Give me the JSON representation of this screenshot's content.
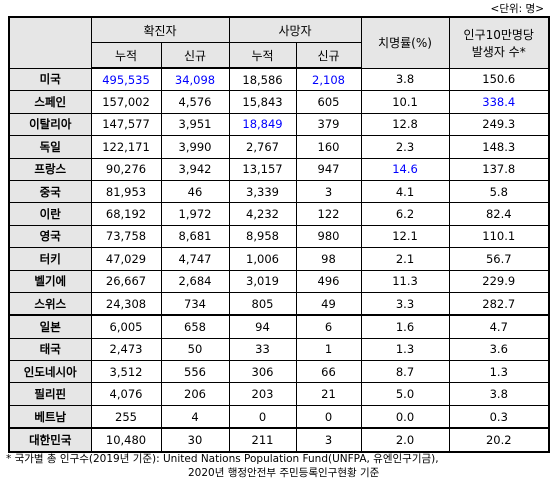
{
  "unit_note": "<단위: 명>",
  "table": {
    "headers": {
      "confirmed": "확진자",
      "deaths": "사망자",
      "cumulative": "누적",
      "new": "신규",
      "fatality": "치명률(%)",
      "per_100k": [
        "인구10만명당",
        "발생자 수*"
      ]
    },
    "highlight_color": "#0000ff",
    "highlighted": [
      [
        0,
        1
      ],
      [
        0,
        2
      ],
      [
        0,
        4
      ],
      [
        1,
        6
      ],
      [
        2,
        3
      ],
      [
        4,
        5
      ]
    ],
    "group_breaks": [
      11,
      16
    ],
    "rows": [
      [
        "미국",
        "495,535",
        "34,098",
        "18,586",
        "2,108",
        "3.8",
        "150.6"
      ],
      [
        "스페인",
        "157,002",
        "4,576",
        "15,843",
        "605",
        "10.1",
        "338.4"
      ],
      [
        "이탈리아",
        "147,577",
        "3,951",
        "18,849",
        "379",
        "12.8",
        "249.3"
      ],
      [
        "독일",
        "122,171",
        "3,990",
        "2,767",
        "160",
        "2.3",
        "148.3"
      ],
      [
        "프랑스",
        "90,276",
        "3,942",
        "13,157",
        "947",
        "14.6",
        "137.8"
      ],
      [
        "중국",
        "81,953",
        "46",
        "3,339",
        "3",
        "4.1",
        "5.8"
      ],
      [
        "이란",
        "68,192",
        "1,972",
        "4,232",
        "122",
        "6.2",
        "82.4"
      ],
      [
        "영국",
        "73,758",
        "8,681",
        "8,958",
        "980",
        "12.1",
        "110.1"
      ],
      [
        "터키",
        "47,029",
        "4,747",
        "1,006",
        "98",
        "2.1",
        "56.7"
      ],
      [
        "벨기에",
        "26,667",
        "2,684",
        "3,019",
        "496",
        "11.3",
        "229.9"
      ],
      [
        "스위스",
        "24,308",
        "734",
        "805",
        "49",
        "3.3",
        "282.7"
      ],
      [
        "일본",
        "6,005",
        "658",
        "94",
        "6",
        "1.6",
        "4.7"
      ],
      [
        "태국",
        "2,473",
        "50",
        "33",
        "1",
        "1.3",
        "3.6"
      ],
      [
        "인도네시아",
        "3,512",
        "556",
        "306",
        "66",
        "8.7",
        "1.3"
      ],
      [
        "필리핀",
        "4,076",
        "206",
        "203",
        "21",
        "5.0",
        "3.8"
      ],
      [
        "베트남",
        "255",
        "4",
        "0",
        "0",
        "0.0",
        "0.3"
      ],
      [
        "대한민국",
        "10,480",
        "30",
        "211",
        "3",
        "2.0",
        "20.2"
      ]
    ]
  },
  "footnote": [
    "* 국가별 총 인구수(2019년 기준): United Nations Population Fund(UNFPA, 유엔인구기금),",
    "2020년 행정안전부 주민등록인구현황 기준"
  ]
}
